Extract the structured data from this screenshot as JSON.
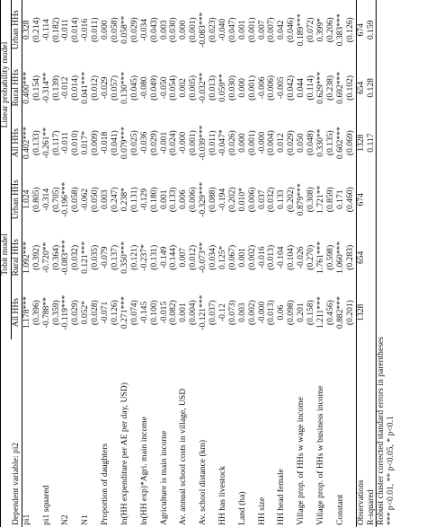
{
  "header": {
    "dependent": "Dependent variable: pi2",
    "groups": [
      "Tobit model",
      "Linear probability model"
    ],
    "columns": [
      "All HHs",
      "Rural HHs",
      "Urban HHs",
      "All HHs",
      "Rural HHs",
      "Urban HHs"
    ]
  },
  "rows": [
    {
      "label": "pi1",
      "coef": [
        "1.178***",
        "1.092***",
        "1.024",
        "0.402***",
        "0.400***",
        "0.328"
      ],
      "se": [
        "(0.396)",
        "(0.392)",
        "(0.805)",
        "(0.133)",
        "(0.154)",
        "(0.214)"
      ]
    },
    {
      "label": "pi1 squared",
      "coef": [
        "-0.788**",
        "-0.720**",
        "-0.314",
        "-0.261**",
        "-0.314**",
        "-0.114"
      ],
      "se": [
        "(0.359)",
        "(0.364)",
        "(0.705)",
        "(0.117)",
        "(0.139)",
        "(0.182)"
      ]
    },
    {
      "label": "N2",
      "coef": [
        "-0.119***",
        "-0.083***",
        "-0.196***",
        "-0.011",
        "-0.012",
        "-0.011"
      ],
      "se": [
        "(0.029)",
        "(0.032)",
        "(0.058)",
        "(0.010)",
        "(0.014)",
        "(0.014)"
      ]
    },
    {
      "label": "N1",
      "coef": [
        "0.052*",
        "0.121***",
        "-0.062",
        "0.017*",
        "0.041***",
        "-0.016"
      ],
      "se": [
        "(0.028)",
        "(0.035)",
        "(0.050)",
        "(0.009)",
        "(0.012)",
        "(0.011)"
      ]
    },
    {
      "label": "Proportion of daughters",
      "coef": [
        "-0.071",
        "-0.079",
        "0.003",
        "-0.018",
        "-0.029",
        "0.000"
      ],
      "se": [
        "(0.126)",
        "(0.137)",
        "(0.247)",
        "(0.041)",
        "(0.057)",
        "(0.058)"
      ]
    },
    {
      "label": "ln(HH expenditure per AE per day, USD)",
      "coef": [
        "0.271***",
        "0.350***",
        "0.238*",
        "0.079***",
        "0.130***",
        "0.058**"
      ],
      "se": [
        "(0.074)",
        "(0.121)",
        "(0.131)",
        "(0.025)",
        "(0.045)",
        "(0.029)"
      ]
    },
    {
      "label": "ln(HH exp)*Agri. main income",
      "coef": [
        "-0.145",
        "-0.237*",
        "-0.129",
        "-0.036",
        "-0.080",
        "-0.034"
      ],
      "se": [
        "(0.100)",
        "(0.131)",
        "(0.180)",
        "(0.029)",
        "(0.049)",
        "(0.043)"
      ]
    },
    {
      "label": "Agriculture is main income",
      "coef": [
        "-0.015",
        "-0.149",
        "0.001",
        "-0.001",
        "-0.050",
        "0.003"
      ],
      "se": [
        "(0.082)",
        "(0.144)",
        "(0.133)",
        "(0.024)",
        "(0.054)",
        "(0.030)"
      ]
    },
    {
      "label": "Av. annual school costs in village, USD",
      "coef": [
        "0.001",
        "0.007",
        "0.006",
        "-0.000",
        "0.002",
        "0.000"
      ],
      "se": [
        "(0.004)",
        "(0.012)",
        "(0.006)",
        "(0.001)",
        "(0.005)",
        "(0.001)"
      ]
    },
    {
      "label": "Av. school distance (km)",
      "coef": [
        "-0.121***",
        "-0.073**",
        "-0.329***",
        "-0.039***",
        "-0.032**",
        "-0.083***"
      ],
      "se": [
        "(0.037)",
        "(0.034)",
        "(0.088)",
        "(0.011)",
        "(0.013)",
        "(0.023)"
      ]
    },
    {
      "label": "HH has livestock",
      "coef": [
        "-0.12",
        "0.125*",
        "-0.194",
        "-0.047*",
        "0.059**",
        "-0.040"
      ],
      "se": [
        "(0.073)",
        "(0.067)",
        "(0.202)",
        "(0.026)",
        "(0.030)",
        "(0.047)"
      ]
    },
    {
      "label": "Land (ha)",
      "coef": [
        "0.003",
        "0.001",
        "0.010*",
        "0.000",
        "0.000",
        "0.001"
      ],
      "se": [
        "(0.002)",
        "(0.002)",
        "(0.006)",
        "(0.001)",
        "(0.001)",
        "(0.001)"
      ]
    },
    {
      "label": "HH size",
      "coef": [
        "-0.000",
        "-0.016",
        "0.037",
        "-0.000",
        "-0.006",
        "0.007"
      ],
      "se": [
        "(0.013)",
        "(0.013)",
        "(0.032)",
        "(0.004)",
        "(0.006)",
        "(0.007)"
      ]
    },
    {
      "label": "HH head female",
      "coef": [
        "0.06",
        "-0.104",
        "0.133",
        "0.012",
        "-0.005",
        "0.042"
      ],
      "se": [
        "(0.098)",
        "(0.104)",
        "(0.202)",
        "(0.029)",
        "(0.042)",
        "(0.046)"
      ]
    },
    {
      "label": "Village prop. of HHs w wage income",
      "coef": [
        "0.201",
        "-0.026",
        "0.879***",
        "0.050",
        "0.044",
        "0.189***"
      ],
      "se": [
        "(0.158)",
        "(0.270)",
        "(0.308)",
        "(0.048)",
        "(0.114)",
        "(0.072)"
      ]
    },
    {
      "label": "Village prop. of HHs w business income",
      "coef": [
        "1.211***",
        "1.761***",
        "1.721**",
        "0.330**",
        "0.629***",
        "0.399*"
      ],
      "se": [
        "(0.456)",
        "(0.598)",
        "(0.859)",
        "(0.135)",
        "(0.238)",
        "(0.206)"
      ]
    },
    {
      "label": "Constant",
      "coef": [
        "0.882***",
        "1.060***",
        "0.171",
        "0.602***",
        "0.692***",
        "0.383***"
      ],
      "se": [
        "(0.201)",
        "(0.283)",
        "(0.460)",
        "(0.069)",
        "(0.102)",
        "(0.126)"
      ]
    }
  ],
  "observations": {
    "label": "Observations",
    "values": [
      "1328",
      "654",
      "674",
      "1328",
      "654",
      "674"
    ]
  },
  "r_squared": {
    "label": "R-squared",
    "values": [
      "0.117",
      "0.128",
      "0.159"
    ]
  },
  "notes": [
    "Robust cluster corrected standard errors in parentheses",
    "*** p<0.01, ** p<0.05, * p<0.1"
  ]
}
